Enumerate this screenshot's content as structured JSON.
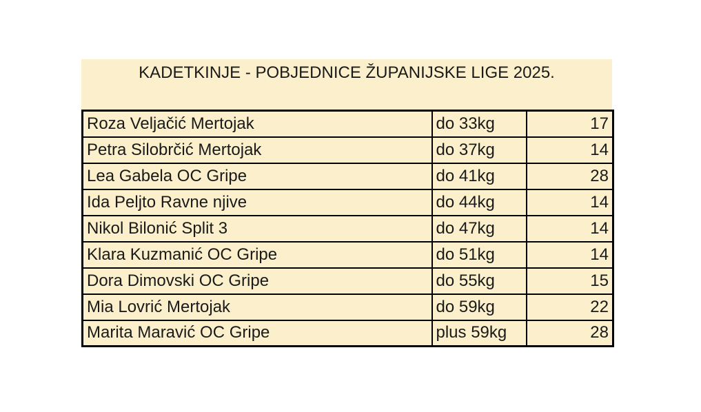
{
  "title": "KADETKINJE - POBJEDNICE ŽUPANIJSKE LIGE 2025.",
  "colors": {
    "cell_background": "#FBF0CB",
    "border": "#000000",
    "text": "#1A1A1A",
    "page_background": "#FFFFFF"
  },
  "table": {
    "rows": [
      {
        "name": "Roza Veljačić Mertojak",
        "category": "do 33kg",
        "points": "17"
      },
      {
        "name": "Petra Silobrčić Mertojak",
        "category": "do 37kg",
        "points": "14"
      },
      {
        "name": "Lea Gabela OC Gripe",
        "category": "do 41kg",
        "points": "28"
      },
      {
        "name": "Ida Peljto Ravne njive",
        "category": "do 44kg",
        "points": "14"
      },
      {
        "name": "Nikol Bilonić Split 3",
        "category": "do 47kg",
        "points": "14"
      },
      {
        "name": "Klara Kuzmanić OC Gripe",
        "category": "do 51kg",
        "points": "14"
      },
      {
        "name": "Dora Dimovski OC Gripe",
        "category": "do 55kg",
        "points": "15"
      },
      {
        "name": "Mia Lovrić Mertojak",
        "category": "do 59kg",
        "points": "22"
      },
      {
        "name": "Marita Maravić OC Gripe",
        "category": "plus 59kg",
        "points": "28"
      }
    ]
  }
}
